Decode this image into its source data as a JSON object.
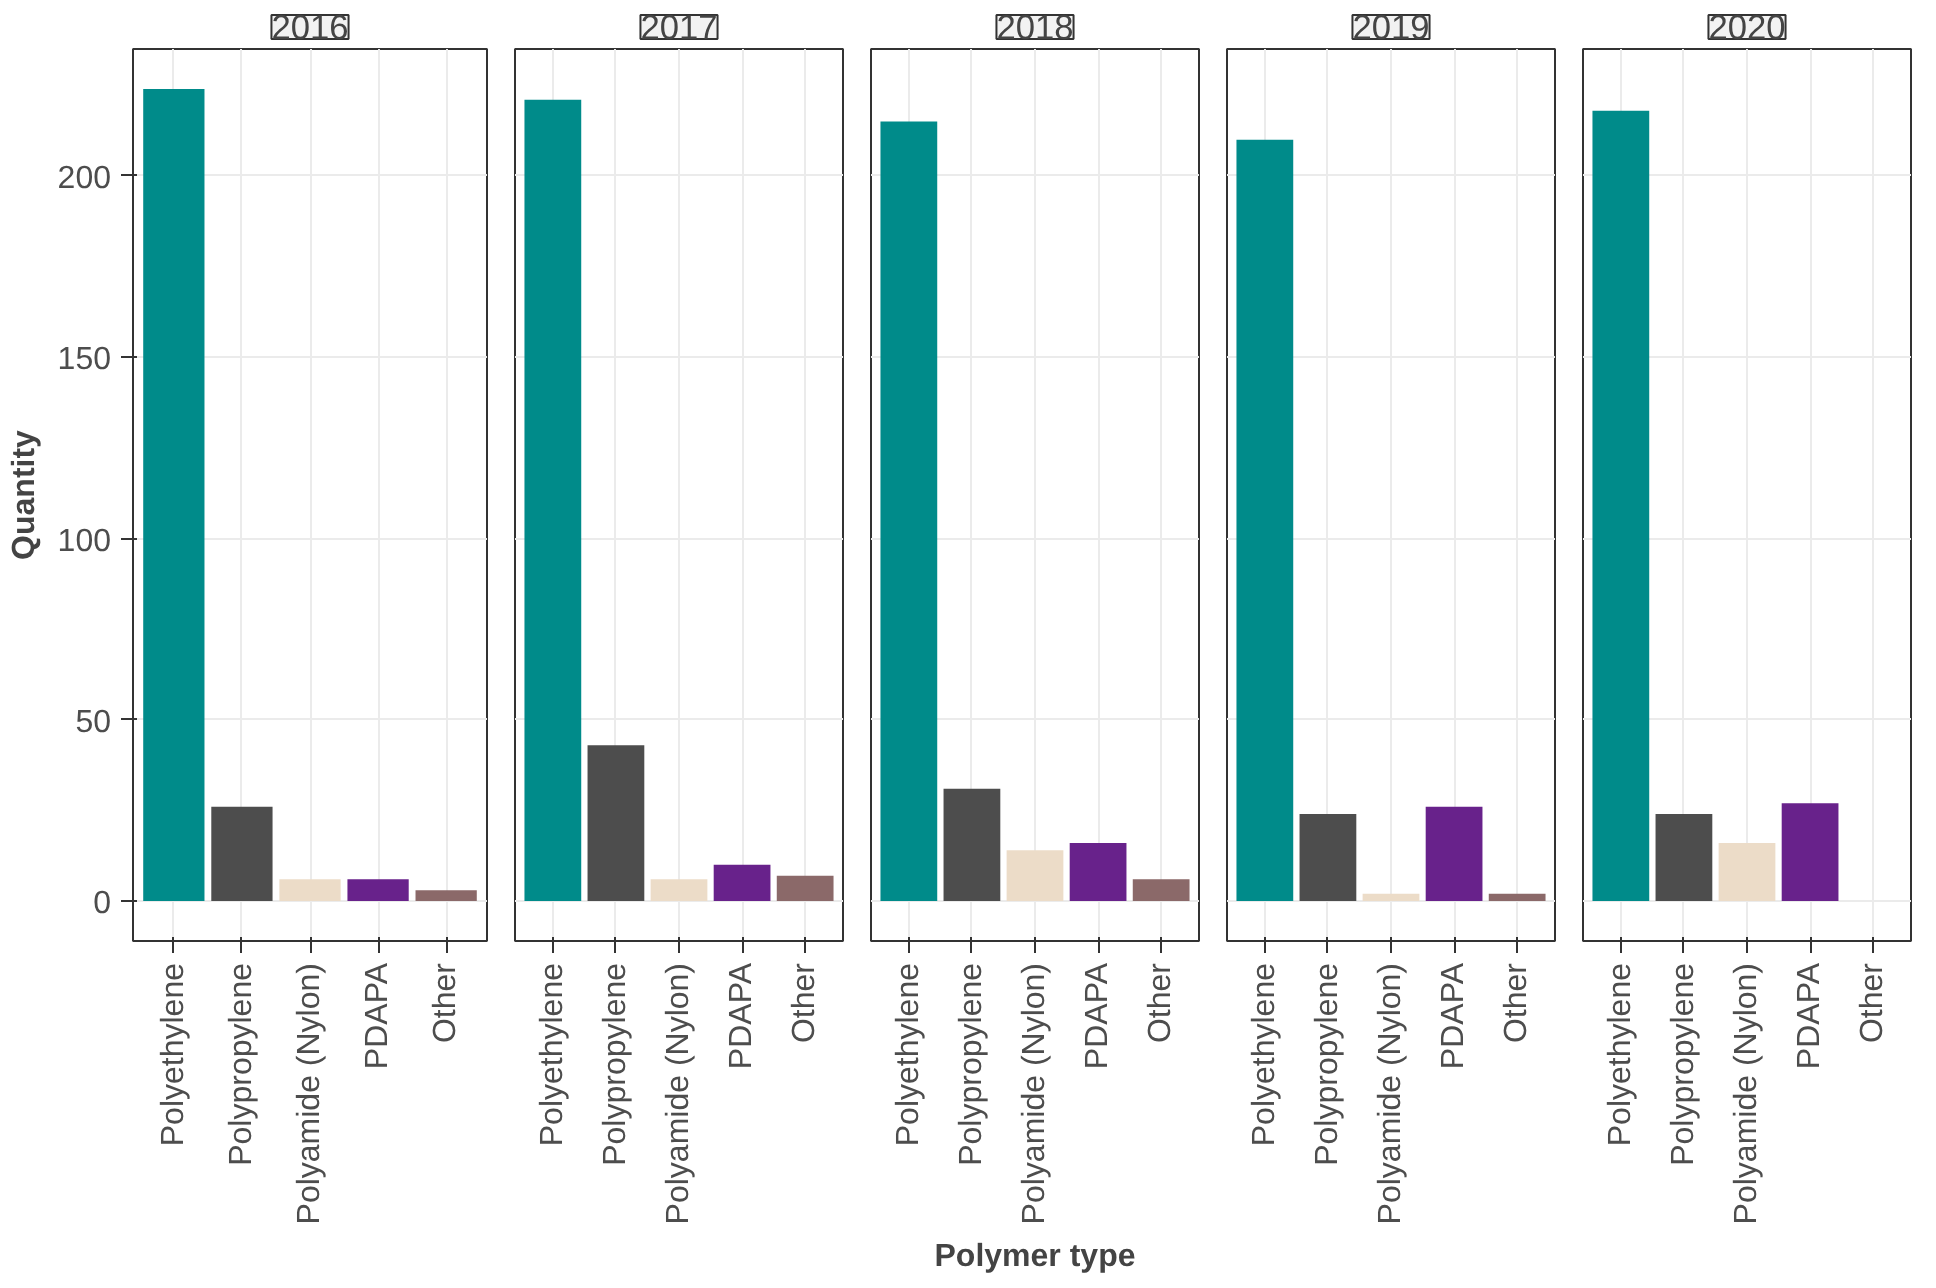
{
  "chart_data": [
    {
      "type": "bar",
      "title": "2016",
      "ylabel": "Quantity",
      "categories": [
        "Polyethylene",
        "Polypropylene",
        "Polyamide (Nylon)",
        "PDAPA",
        "Other"
      ],
      "values": [
        224,
        26,
        6,
        6,
        3
      ],
      "colors": [
        "#008b8a",
        "#4d4d4d",
        "#ecdcc8",
        "#68228b",
        "#8b6969"
      ],
      "ylim": [
        -11,
        235
      ],
      "yticks": [
        0,
        50,
        100,
        150,
        200
      ],
      "grid": true
    },
    {
      "type": "bar",
      "title": "2017",
      "categories": [
        "Polyethylene",
        "Polypropylene",
        "Polyamide (Nylon)",
        "PDAPA",
        "Other"
      ],
      "values": [
        221,
        43,
        6,
        10,
        7
      ],
      "colors": [
        "#008b8a",
        "#4d4d4d",
        "#ecdcc8",
        "#68228b",
        "#8b6969"
      ],
      "ylim": [
        -11,
        235
      ],
      "yticks": [
        0,
        50,
        100,
        150,
        200
      ],
      "grid": true,
      "tick_labels": "x"
    },
    {
      "type": "bar",
      "title": "2018",
      "xlabel": "Polymer type",
      "categories": [
        "Polyethylene",
        "Polypropylene",
        "Polyamide (Nylon)",
        "PDAPA",
        "Other"
      ],
      "values": [
        215,
        31,
        14,
        16,
        6
      ],
      "colors": [
        "#008b8a",
        "#4d4d4d",
        "#ecdcc8",
        "#68228b",
        "#8b6969"
      ],
      "ylim": [
        -11,
        235
      ],
      "yticks": [
        0,
        50,
        100,
        150,
        200
      ],
      "grid": true,
      "tick_labels": "x"
    },
    {
      "type": "bar",
      "title": "2019",
      "categories": [
        "Polyethylene",
        "Polypropylene",
        "Polyamide (Nylon)",
        "PDAPA",
        "Other"
      ],
      "values": [
        210,
        24,
        2,
        26,
        2
      ],
      "colors": [
        "#008b8a",
        "#4d4d4d",
        "#ecdcc8",
        "#68228b",
        "#8b6969"
      ],
      "ylim": [
        -11,
        235
      ],
      "yticks": [
        0,
        50,
        100,
        150,
        200
      ],
      "grid": true,
      "tick_labels": "x"
    },
    {
      "type": "bar",
      "title": "2020",
      "categories": [
        "Polyethylene",
        "Polypropylene",
        "Polyamide (Nylon)",
        "PDAPA",
        "Other"
      ],
      "values": [
        218,
        24,
        16,
        27,
        null
      ],
      "colors": [
        "#008b8a",
        "#4d4d4d",
        "#ecdcc8",
        "#68228b",
        "#8b6969"
      ],
      "ylim": [
        -11,
        235
      ],
      "yticks": [
        0,
        50,
        100,
        150,
        200
      ],
      "grid": true,
      "tick_labels": "x"
    }
  ]
}
